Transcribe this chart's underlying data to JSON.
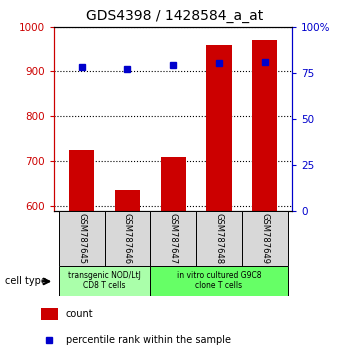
{
  "title": "GDS4398 / 1428584_a_at",
  "samples": [
    "GSM787645",
    "GSM787646",
    "GSM787647",
    "GSM787648",
    "GSM787649"
  ],
  "counts": [
    725,
    635,
    710,
    960,
    970
  ],
  "percentiles": [
    78,
    77,
    79,
    80,
    81
  ],
  "ylim_left": [
    590,
    1000
  ],
  "ylim_right": [
    0,
    100
  ],
  "yticks_left": [
    600,
    700,
    800,
    900,
    1000
  ],
  "yticks_right": [
    0,
    25,
    50,
    75,
    100
  ],
  "bar_color": "#cc0000",
  "dot_color": "#0000cc",
  "bar_bottom": 590,
  "groups": [
    {
      "label": "transgenic NOD/LtJ\nCD8 T cells",
      "samples": [
        0,
        1
      ],
      "color": "#aaffaa"
    },
    {
      "label": "in vitro cultured G9C8\nclone T cells",
      "samples": [
        2,
        3,
        4
      ],
      "color": "#66ff66"
    }
  ],
  "cell_type_label": "cell type",
  "legend_count": "count",
  "legend_percentile": "percentile rank within the sample",
  "left_tick_color": "#cc0000",
  "right_tick_color": "#0000cc",
  "title_fontsize": 10,
  "axis_fontsize": 7.5,
  "bg_color": "#d8d8d8"
}
